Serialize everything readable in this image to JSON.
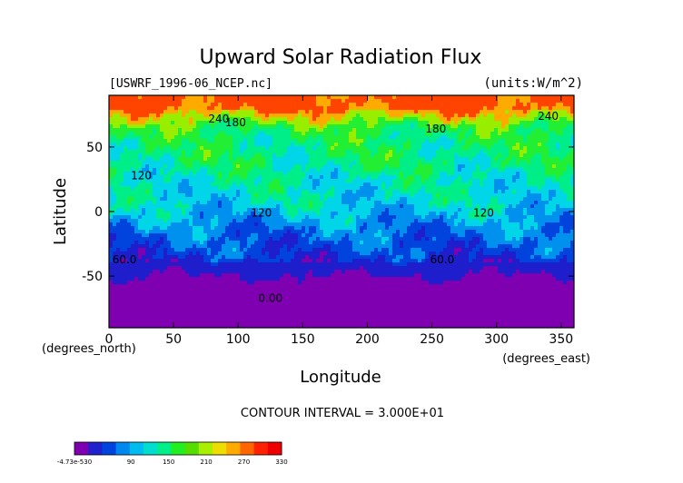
{
  "chart_data": {
    "type": "heatmap",
    "title": "Upward Solar Radiation Flux",
    "file_label": "[USWRF_1996-06_NCEP.nc]",
    "units_label": "(units:W/m^2)",
    "xlabel": "Longitude",
    "ylabel": "Latitude",
    "x_unit_label": "(degrees_east)",
    "y_unit_label": "(degrees_north)",
    "xlim": [
      0,
      360
    ],
    "ylim": [
      -90,
      90
    ],
    "x_ticks": [
      0,
      50,
      100,
      150,
      200,
      250,
      300,
      350
    ],
    "y_ticks": [
      -50,
      0,
      50
    ],
    "contour_interval_text": "CONTOUR INTERVAL = 3.000E+01",
    "contour_labels": [
      {
        "text": "240",
        "lon": 85,
        "lat": 69
      },
      {
        "text": "180",
        "lon": 98,
        "lat": 66
      },
      {
        "text": "240",
        "lon": 340,
        "lat": 71
      },
      {
        "text": "180",
        "lon": 253,
        "lat": 61
      },
      {
        "text": "120",
        "lon": 25,
        "lat": 25
      },
      {
        "text": "120",
        "lon": 118,
        "lat": -4
      },
      {
        "text": "120",
        "lon": 290,
        "lat": -4
      },
      {
        "text": "60.0",
        "lon": 12,
        "lat": -40
      },
      {
        "text": "60.0",
        "lon": 258,
        "lat": -40
      },
      {
        "text": "0.00",
        "lon": 125,
        "lat": -70
      }
    ],
    "zonal_profile": [
      {
        "lat": 90,
        "value": 280
      },
      {
        "lat": 80,
        "value": 275
      },
      {
        "lat": 72,
        "value": 230
      },
      {
        "lat": 65,
        "value": 190
      },
      {
        "lat": 55,
        "value": 175
      },
      {
        "lat": 45,
        "value": 170
      },
      {
        "lat": 35,
        "value": 165
      },
      {
        "lat": 25,
        "value": 150
      },
      {
        "lat": 15,
        "value": 145
      },
      {
        "lat": 5,
        "value": 135
      },
      {
        "lat": -5,
        "value": 115
      },
      {
        "lat": -15,
        "value": 95
      },
      {
        "lat": -25,
        "value": 80
      },
      {
        "lat": -35,
        "value": 65
      },
      {
        "lat": -42,
        "value": 45
      },
      {
        "lat": -50,
        "value": 30
      },
      {
        "lat": -58,
        "value": 12
      },
      {
        "lat": -66,
        "value": 3
      },
      {
        "lat": -75,
        "value": -2
      },
      {
        "lat": -90,
        "value": -2
      }
    ],
    "colorbar": {
      "labels": [
        "-4.73e-530",
        "90",
        "150",
        "210",
        "270",
        "330"
      ],
      "label_values": [
        0,
        90,
        150,
        210,
        270,
        330
      ],
      "min": 0,
      "max": 330,
      "colors": [
        "#7f00b0",
        "#2020cc",
        "#0044dd",
        "#0088ee",
        "#00bbee",
        "#00ddcc",
        "#00ee88",
        "#22ee22",
        "#55dd00",
        "#aaee00",
        "#eedd00",
        "#ffaa00",
        "#ff6600",
        "#ff2200",
        "#ee0000"
      ]
    },
    "colors": {
      "0": "#7f00b0",
      "30": "#1e1ecc",
      "60": "#0044dd",
      "90": "#0090ee",
      "120": "#00d6e8",
      "150": "#00ee88",
      "180": "#22ee33",
      "210": "#99ee00",
      "240": "#ffaa00",
      "270": "#ff4400"
    }
  }
}
